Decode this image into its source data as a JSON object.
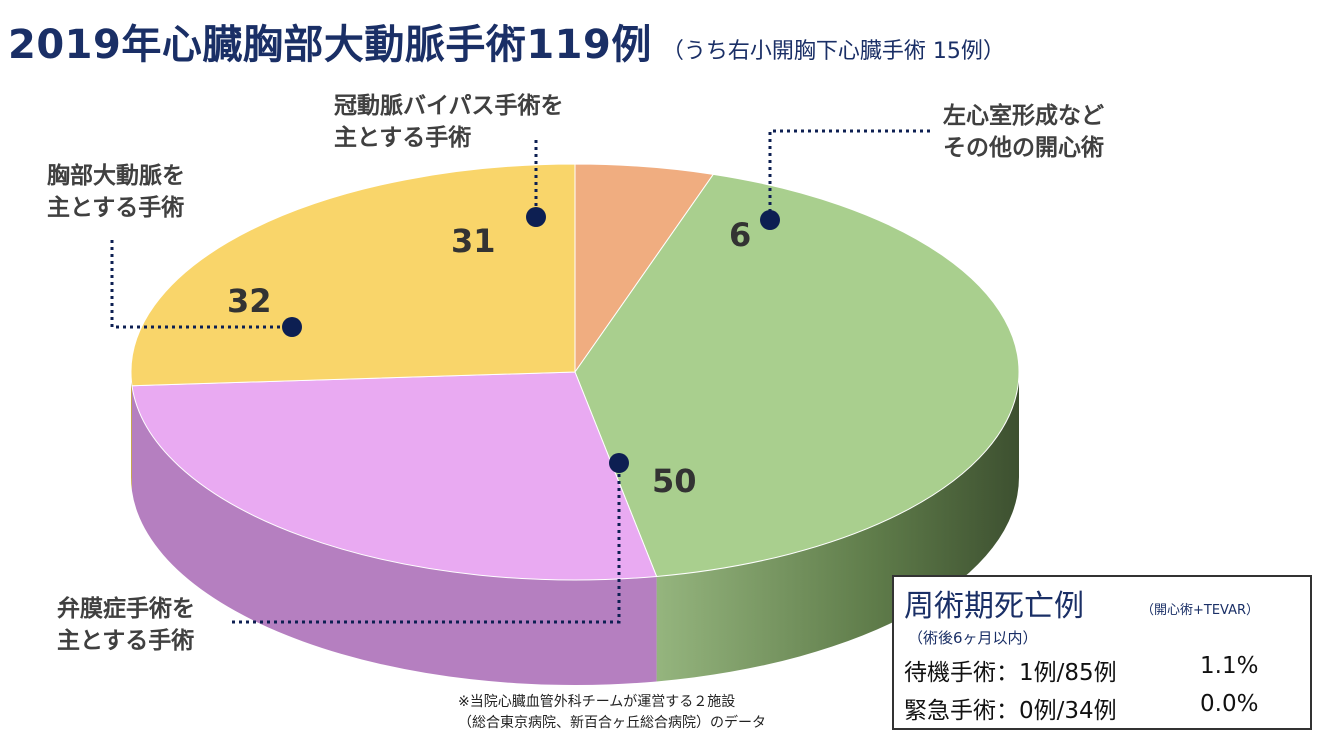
{
  "header": {
    "title": "2019年心臓胸部大動脈手術119例",
    "subtitle": "（うち右小開胸下心臓手術 15例）"
  },
  "chart_data": {
    "type": "pie",
    "total": 119,
    "slices": [
      {
        "label": "左心室形成など\nその他の開心術",
        "value": 6,
        "color": "#f0ad80",
        "side_color": "#b9825c"
      },
      {
        "label": "弁膜症手術を\n主とする手術",
        "value": 50,
        "color": "#a9cf8e",
        "side_color": "#62804a"
      },
      {
        "label": "胸部大動脈を\n主とする手術",
        "value": 32,
        "color": "#e9aaf2",
        "side_color": "#b57fc0"
      },
      {
        "label": "冠動脈バイパス手術を\n主とする手術",
        "value": 31,
        "color": "#f9d56a",
        "side_color": "#c4a447"
      }
    ],
    "label_lines": {
      "cabg": [
        "冠動脈バイパス手術を",
        "主とする手術"
      ],
      "lv": [
        "左心室形成など",
        "その他の開心術"
      ],
      "aorta": [
        "胸部大動脈を",
        "主とする手術"
      ],
      "valve": [
        "弁膜症手術を",
        "主とする手術"
      ]
    },
    "value_labels": {
      "lv": "6",
      "valve": "50",
      "aorta": "32",
      "cabg": "31"
    },
    "marker_color": "#0d1f52"
  },
  "mortality": {
    "title": "周術期死亡例",
    "note": "（開心術+TEVAR）",
    "subnote": "（術後6ヶ月以内）",
    "rows": [
      {
        "label": "待機手術：1例/85例",
        "pct": "1.1%"
      },
      {
        "label": "緊急手術：0例/34例",
        "pct": "0.0%"
      }
    ]
  },
  "footnote": {
    "line1": "※当院心臓血管外科チームが運営する２施設",
    "line2": "（総合東京病院、新百合ヶ丘総合病院）のデータ"
  }
}
